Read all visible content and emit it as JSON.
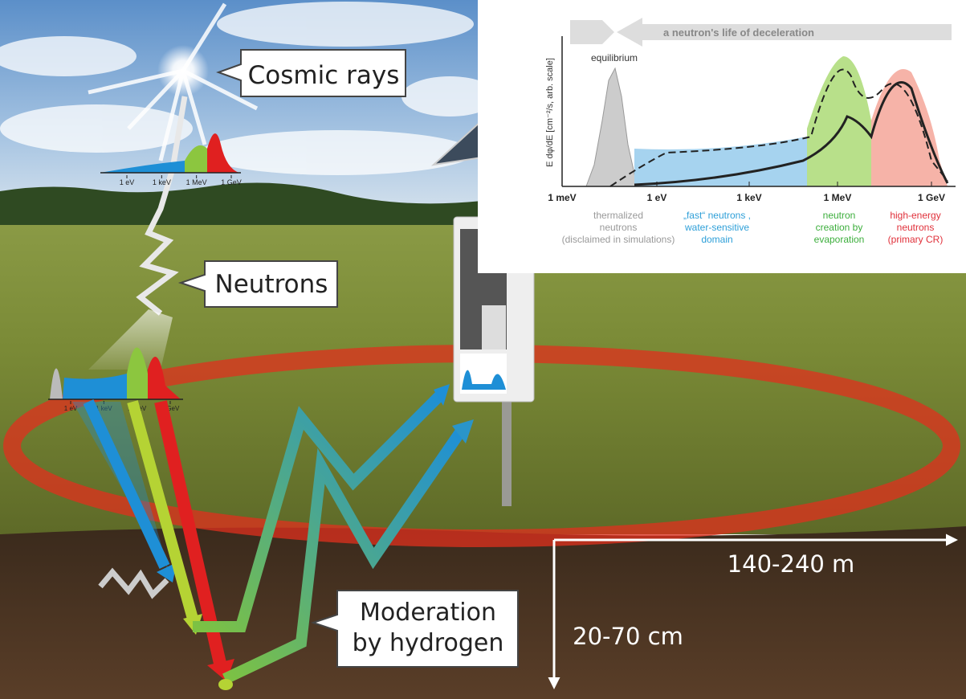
{
  "labels": {
    "cosmic_rays": "Cosmic rays",
    "neutrons": "Neutrons",
    "moderation": [
      "Moderation",
      "by hydrogen"
    ],
    "radius": "140-240 m",
    "depth": "20-70 cm"
  },
  "sky_spectrum": {
    "ticks": [
      "1 eV",
      "1 keV",
      "1 MeV",
      "1 GeV"
    ]
  },
  "ground_spectrum": {
    "ticks": [
      "1 eV",
      "1 keV",
      "1 MeV",
      "1 GeV"
    ]
  },
  "inset": {
    "banner": "a neutron's life of deceleration",
    "equilibrium": "equilibrium",
    "y_label": "E dφ/dE [cm⁻²/s, arb. scale]",
    "x_ticks": [
      "1 meV",
      "1 eV",
      "1 keV",
      "1 MeV",
      "1 GeV"
    ],
    "regions": [
      {
        "lines": [
          "thermalized",
          "neutrons",
          "(disclaimed in simulations)"
        ]
      },
      {
        "lines": [
          "„fast“ neutrons ,",
          "water-sensitive",
          "domain"
        ]
      },
      {
        "lines": [
          "neutron",
          "creation by",
          "evaporation"
        ]
      },
      {
        "lines": [
          "high-energy",
          "neutrons",
          "(primary CR)"
        ]
      }
    ]
  }
}
